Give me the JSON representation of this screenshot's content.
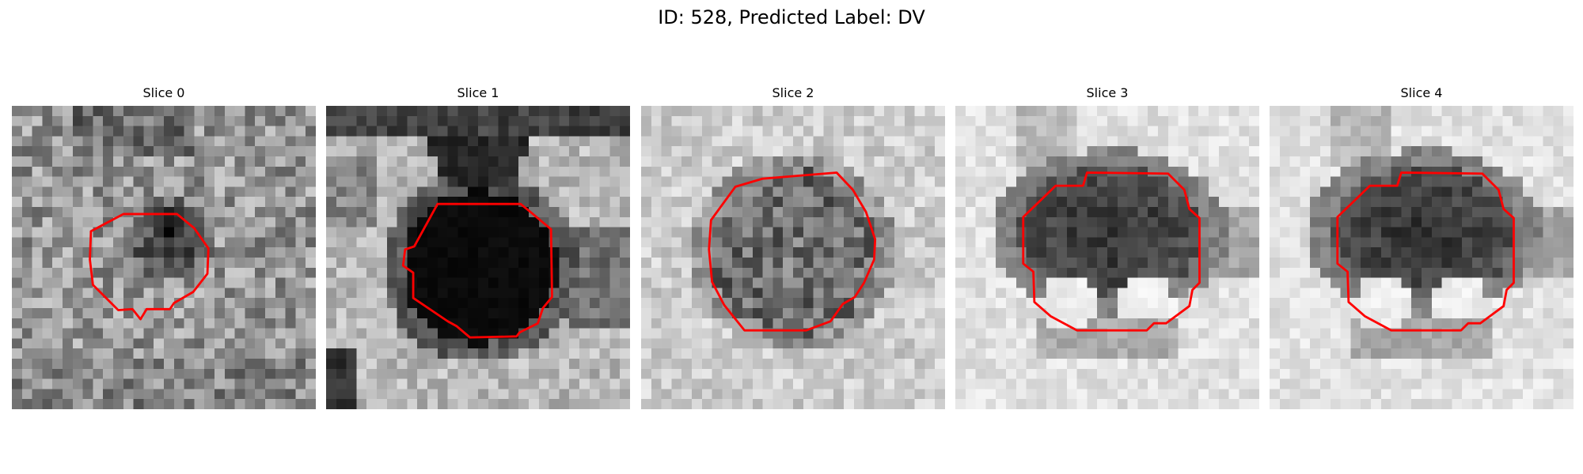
{
  "figure": {
    "title": "ID: 528, Predicted Label: DV"
  },
  "contour_color": "#ff0000",
  "panels": [
    {
      "title": "Slice 0",
      "background": "medium-gray noisy texture",
      "blob": "dark gray",
      "seed": 11
    },
    {
      "title": "Slice 1",
      "background": "light gray with dark vessel from top",
      "blob": "near-black",
      "seed": 23
    },
    {
      "title": "Slice 2",
      "background": "light gray noisy texture",
      "blob": "medium-dark gray",
      "seed": 37
    },
    {
      "title": "Slice 3",
      "background": "very light gray",
      "blob": "dark gray with light lower lobes",
      "seed": 41
    },
    {
      "title": "Slice 4",
      "background": "very light gray",
      "blob": "dark gray with light lower lobes",
      "seed": 53
    }
  ]
}
